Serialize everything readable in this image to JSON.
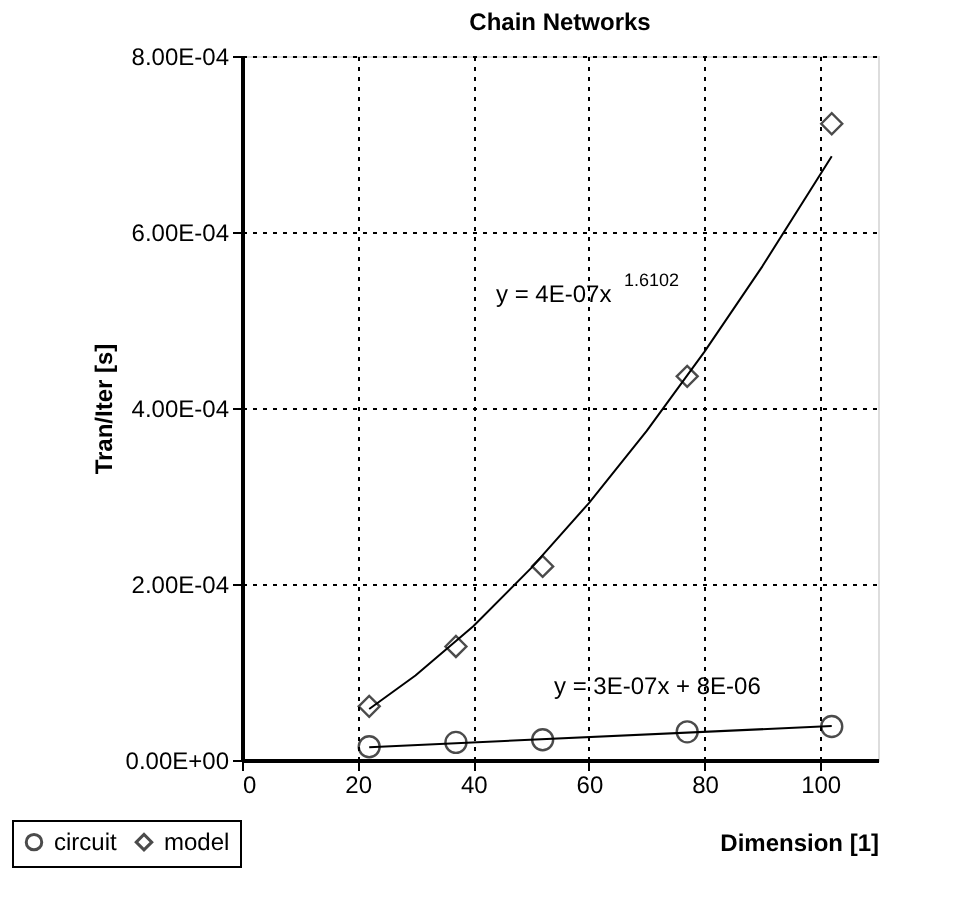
{
  "chart_data": {
    "type": "scatter",
    "title": "Chain Networks",
    "xlabel": "Dimension [1]",
    "ylabel": "Tran/Iter [s]",
    "xlim": [
      0,
      110
    ],
    "xticks": [
      0,
      20,
      40,
      60,
      80,
      100
    ],
    "ylim": [
      0,
      0.0008
    ],
    "yticks": [
      {
        "value": 0,
        "label": "0.00E+00"
      },
      {
        "value": 0.0002,
        "label": "2.00E-04"
      },
      {
        "value": 0.0004,
        "label": "4.00E-04"
      },
      {
        "value": 0.0006,
        "label": "6.00E-04"
      },
      {
        "value": 0.0008,
        "label": "8.00E-04"
      }
    ],
    "grid": true,
    "legend": "bottom left",
    "x": [
      22,
      37,
      52,
      77,
      102
    ],
    "series": [
      {
        "name": "circuit",
        "color": "#000000",
        "marker": "circle",
        "values": [
          1.5e-05,
          2e-05,
          2.3e-05,
          3.2e-05,
          3.8e-05
        ]
      },
      {
        "name": "model",
        "color": "#000000",
        "marker": "diamond",
        "values": [
          6.1e-05,
          0.000129,
          0.00022,
          0.000436,
          0.000723
        ]
      },
      {
        "type": "line",
        "color": "#000000",
        "x": [
          22,
          102
        ],
        "values": [
          1.46e-05,
          3.86e-05
        ]
      },
      {
        "type": "line",
        "color": "#000000",
        "x": [
          22,
          30,
          40,
          50,
          60,
          70,
          80,
          90,
          102
        ],
        "values": [
          5.8e-05,
          9.6e-05,
          0.000152,
          0.000218,
          0.000292,
          0.000374,
          0.000464,
          0.000561,
          0.000686
        ]
      }
    ],
    "annotations": [
      "y = 4E-07x$^{1.6102}$",
      "y = 3E-07x + 8E-06"
    ]
  }
}
